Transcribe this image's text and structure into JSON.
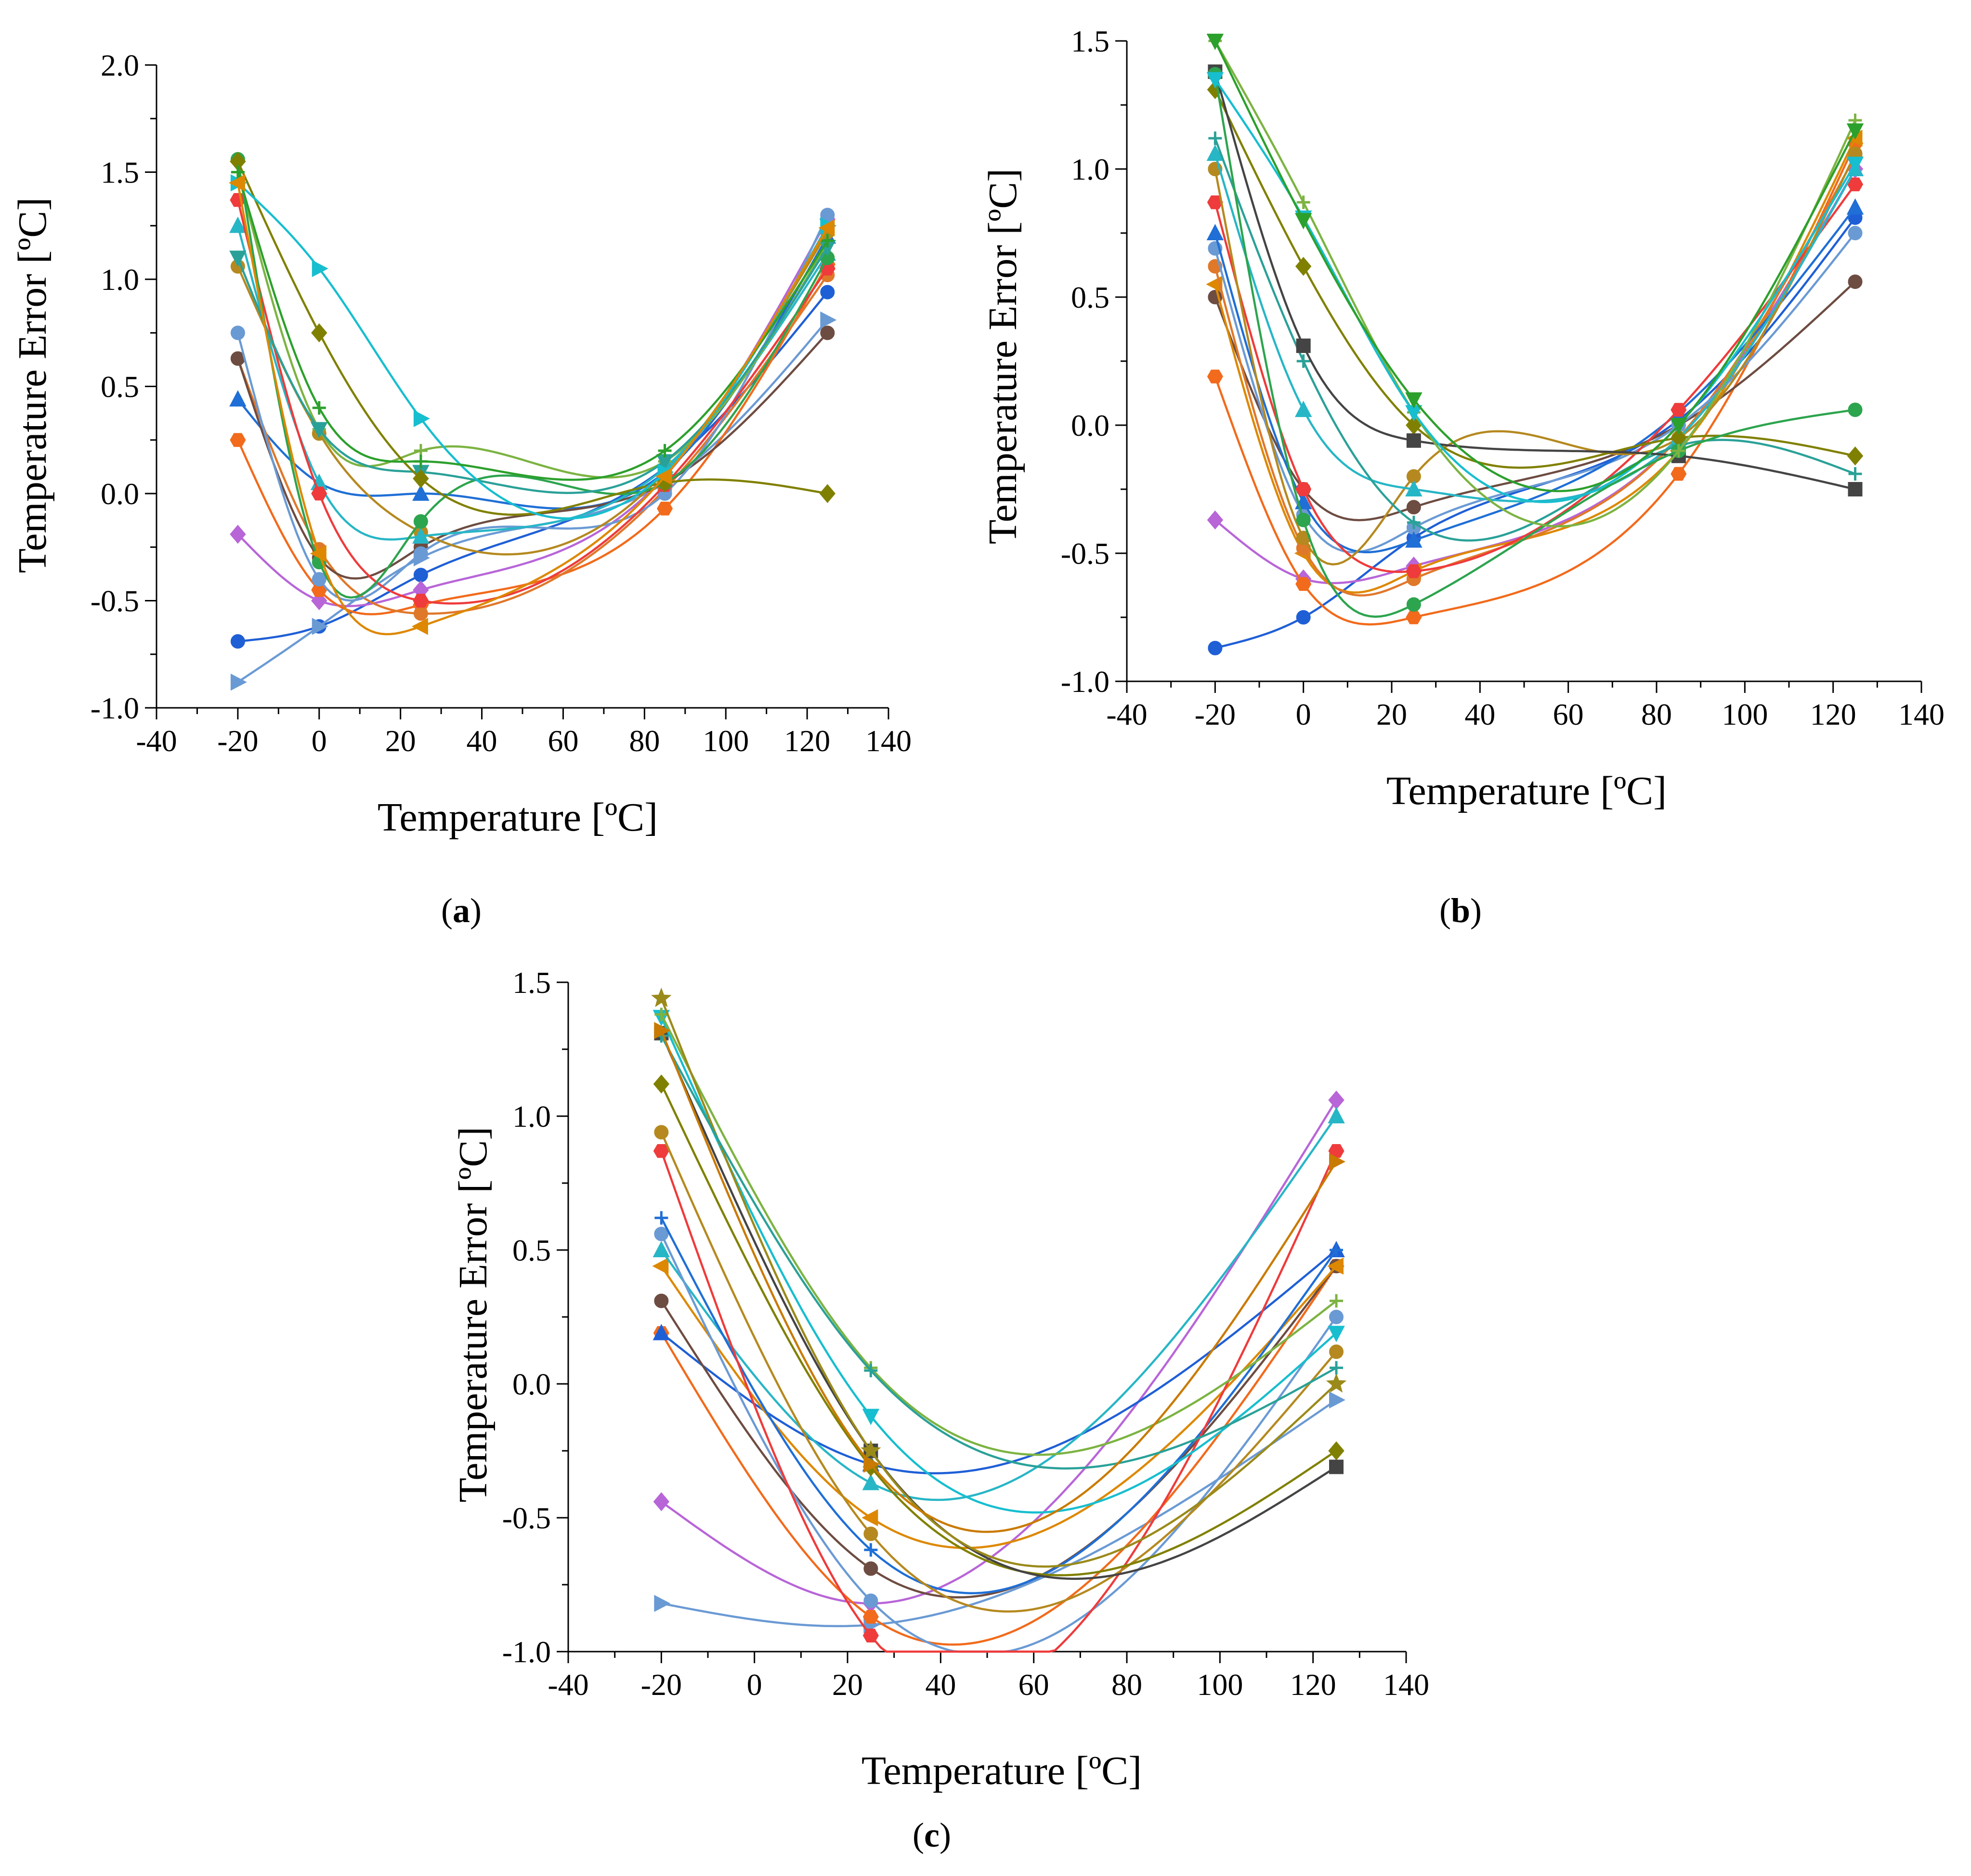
{
  "figure": {
    "panels": [
      "a",
      "b",
      "c"
    ]
  },
  "chart_data": [
    {
      "panel": "a",
      "caption": "(a)",
      "caption_letter": "a",
      "type": "line",
      "xlabel": "Temperature [ºC]",
      "ylabel": "Temperature Error [ºC]",
      "xlim": [
        -40,
        140
      ],
      "ylim": [
        -1.0,
        2.0
      ],
      "xticks": [
        -40,
        -20,
        0,
        20,
        40,
        60,
        80,
        100,
        120,
        140
      ],
      "xtick_labels": [
        "-40",
        "-20",
        "0",
        "20",
        "40",
        "60",
        "80",
        "100",
        "120",
        "140"
      ],
      "yticks": [
        -1.0,
        -0.5,
        0.0,
        0.5,
        1.0,
        1.5,
        2.0
      ],
      "ytick_labels": [
        "-1.0",
        "-0.5",
        "0.0",
        "0.5",
        "1.0",
        "1.5",
        "2.0"
      ],
      "series": [
        {
          "name": "s1",
          "color": "#1f5fd6",
          "marker": "circle",
          "x": [
            -20,
            0,
            25,
            85,
            125
          ],
          "y": [
            -0.69,
            -0.62,
            -0.38,
            0.12,
            0.94
          ]
        },
        {
          "name": "s2",
          "color": "#6a9ad4",
          "marker": "triangle-right",
          "x": [
            -20,
            0,
            25,
            85,
            125
          ],
          "y": [
            -0.88,
            -0.62,
            -0.3,
            0.05,
            0.81
          ]
        },
        {
          "name": "s3",
          "color": "#b865d8",
          "marker": "diamond",
          "x": [
            -20,
            0,
            25,
            85,
            125
          ],
          "y": [
            -0.19,
            -0.5,
            -0.45,
            0.08,
            1.28
          ]
        },
        {
          "name": "s4",
          "color": "#f26a1b",
          "marker": "hexagon",
          "x": [
            -20,
            0,
            25,
            85,
            125
          ],
          "y": [
            0.25,
            -0.45,
            -0.52,
            -0.07,
            1.07
          ]
        },
        {
          "name": "s5",
          "color": "#1f6fd6",
          "marker": "triangle-up",
          "x": [
            -20,
            0,
            25,
            85,
            125
          ],
          "y": [
            0.44,
            0.05,
            0.0,
            0.1,
            1.2
          ]
        },
        {
          "name": "s6",
          "color": "#e0782a",
          "marker": "circle",
          "x": [
            -20,
            0,
            25,
            85,
            125
          ],
          "y": [
            0.63,
            -0.26,
            -0.56,
            0.02,
            1.02
          ]
        },
        {
          "name": "s7",
          "color": "#6d4c41",
          "marker": "circle",
          "x": [
            -20,
            0,
            25,
            85,
            125
          ],
          "y": [
            0.63,
            -0.3,
            -0.25,
            0.05,
            0.75
          ]
        },
        {
          "name": "s8",
          "color": "#6a9ad4",
          "marker": "circle",
          "x": [
            -20,
            0,
            25,
            85,
            125
          ],
          "y": [
            0.75,
            -0.4,
            -0.28,
            0.0,
            1.3
          ]
        },
        {
          "name": "s9",
          "color": "#b5891f",
          "marker": "circle",
          "x": [
            -20,
            0,
            25,
            85,
            125
          ],
          "y": [
            1.06,
            0.28,
            -0.18,
            0.1,
            1.22
          ]
        },
        {
          "name": "s10",
          "color": "#27b6c6",
          "marker": "triangle-up",
          "x": [
            -20,
            0,
            25,
            85,
            125
          ],
          "y": [
            1.25,
            0.05,
            -0.2,
            0.12,
            1.12
          ]
        },
        {
          "name": "s11",
          "color": "#ef3b3b",
          "marker": "hexagon",
          "x": [
            -20,
            0,
            25,
            85,
            125
          ],
          "y": [
            1.37,
            0.0,
            -0.5,
            0.04,
            1.05
          ]
        },
        {
          "name": "s12",
          "color": "#7cb342",
          "marker": "plus",
          "x": [
            -20,
            0,
            25,
            85,
            125
          ],
          "y": [
            1.5,
            0.3,
            0.2,
            0.15,
            1.17
          ]
        },
        {
          "name": "s13",
          "color": "#2da44e",
          "marker": "circle",
          "x": [
            -20,
            0,
            25,
            85,
            125
          ],
          "y": [
            1.56,
            -0.32,
            -0.13,
            0.05,
            1.1
          ]
        },
        {
          "name": "s14",
          "color": "#2aa198",
          "marker": "triangle-down",
          "x": [
            -20,
            0,
            25,
            85,
            125
          ],
          "y": [
            1.1,
            0.3,
            0.1,
            0.15,
            1.15
          ]
        },
        {
          "name": "s15",
          "color": "#808000",
          "marker": "diamond",
          "x": [
            -20,
            0,
            25,
            85,
            125
          ],
          "y": [
            1.55,
            0.75,
            0.07,
            0.05,
            0.0
          ]
        },
        {
          "name": "s16",
          "color": "#17becf",
          "marker": "triangle-right",
          "x": [
            -20,
            0,
            25,
            85,
            125
          ],
          "y": [
            1.45,
            1.05,
            0.35,
            0.1,
            1.25
          ]
        },
        {
          "name": "s17",
          "color": "#2ca02c",
          "marker": "plus",
          "x": [
            -20,
            0,
            25,
            85,
            125
          ],
          "y": [
            1.5,
            0.4,
            0.15,
            0.2,
            1.18
          ]
        },
        {
          "name": "s18",
          "color": "#dd8800",
          "marker": "triangle-left",
          "x": [
            -20,
            0,
            25,
            85,
            125
          ],
          "y": [
            1.45,
            -0.28,
            -0.62,
            0.08,
            1.24
          ]
        }
      ]
    },
    {
      "panel": "b",
      "caption": "(b)",
      "caption_letter": "b",
      "type": "line",
      "xlabel": "Temperature [ºC]",
      "ylabel": "Temperature Error [ºC]",
      "xlim": [
        -40,
        140
      ],
      "ylim": [
        -1.0,
        1.5
      ],
      "xticks": [
        -40,
        -20,
        0,
        20,
        40,
        60,
        80,
        100,
        120,
        140
      ],
      "xtick_labels": [
        "-40",
        "-20",
        "0",
        "20",
        "40",
        "60",
        "80",
        "100",
        "120",
        "140"
      ],
      "yticks": [
        -1.0,
        -0.5,
        0.0,
        0.5,
        1.0,
        1.5
      ],
      "ytick_labels": [
        "-1.0",
        "-0.5",
        "0.0",
        "0.5",
        "1.0",
        "1.5"
      ],
      "series": [
        {
          "name": "s1",
          "color": "#1f5fd6",
          "marker": "circle",
          "x": [
            -20,
            0,
            25,
            85,
            125
          ],
          "y": [
            -0.87,
            -0.75,
            -0.44,
            0.02,
            0.81
          ]
        },
        {
          "name": "s2",
          "color": "#b865d8",
          "marker": "diamond",
          "x": [
            -20,
            0,
            25,
            85,
            125
          ],
          "y": [
            -0.37,
            -0.6,
            -0.55,
            -0.05,
            1.0
          ]
        },
        {
          "name": "s3",
          "color": "#f26a1b",
          "marker": "hexagon",
          "x": [
            -20,
            0,
            25,
            85,
            125
          ],
          "y": [
            0.19,
            -0.62,
            -0.75,
            -0.19,
            1.1
          ]
        },
        {
          "name": "s4",
          "color": "#6d4c41",
          "marker": "circle",
          "x": [
            -20,
            0,
            25,
            85,
            125
          ],
          "y": [
            0.5,
            -0.25,
            -0.32,
            0.0,
            0.56
          ]
        },
        {
          "name": "s5",
          "color": "#dd8800",
          "marker": "triangle-left",
          "x": [
            -20,
            0,
            25,
            85,
            125
          ],
          "y": [
            0.55,
            -0.5,
            -0.57,
            -0.1,
            1.12
          ]
        },
        {
          "name": "s6",
          "color": "#e0782a",
          "marker": "circle",
          "x": [
            -20,
            0,
            25,
            85,
            125
          ],
          "y": [
            0.62,
            -0.48,
            -0.6,
            -0.05,
            1.05
          ]
        },
        {
          "name": "s7",
          "color": "#6a9ad4",
          "marker": "circle",
          "x": [
            -20,
            0,
            25,
            85,
            125
          ],
          "y": [
            0.69,
            -0.35,
            -0.4,
            0.0,
            0.75
          ]
        },
        {
          "name": "s8",
          "color": "#1f6fd6",
          "marker": "triangle-up",
          "x": [
            -20,
            0,
            25,
            85,
            125
          ],
          "y": [
            0.75,
            -0.3,
            -0.45,
            0.05,
            0.85
          ]
        },
        {
          "name": "s9",
          "color": "#ef3b3b",
          "marker": "hexagon",
          "x": [
            -20,
            0,
            25,
            85,
            125
          ],
          "y": [
            0.87,
            -0.25,
            -0.57,
            0.06,
            0.94
          ]
        },
        {
          "name": "s10",
          "color": "#b5891f",
          "marker": "circle",
          "x": [
            -20,
            0,
            25,
            85,
            125
          ],
          "y": [
            1.0,
            -0.44,
            -0.2,
            -0.05,
            1.06
          ]
        },
        {
          "name": "s11",
          "color": "#27b6c6",
          "marker": "triangle-up",
          "x": [
            -20,
            0,
            25,
            85,
            125
          ],
          "y": [
            1.06,
            0.06,
            -0.25,
            -0.05,
            1.0
          ]
        },
        {
          "name": "s12",
          "color": "#2aa198",
          "marker": "plus",
          "x": [
            -20,
            0,
            25,
            85,
            125
          ],
          "y": [
            1.12,
            0.25,
            -0.38,
            -0.08,
            -0.19
          ]
        },
        {
          "name": "s13",
          "color": "#808000",
          "marker": "diamond",
          "x": [
            -20,
            0,
            25,
            85,
            125
          ],
          "y": [
            1.31,
            0.62,
            0.0,
            -0.05,
            -0.12
          ]
        },
        {
          "name": "s14",
          "color": "#444444",
          "marker": "square",
          "x": [
            -20,
            0,
            25,
            85,
            125
          ],
          "y": [
            1.38,
            0.31,
            -0.06,
            -0.12,
            -0.25
          ]
        },
        {
          "name": "s15",
          "color": "#2da44e",
          "marker": "circle",
          "x": [
            -20,
            0,
            25,
            85,
            125
          ],
          "y": [
            1.37,
            -0.37,
            -0.7,
            -0.1,
            0.06
          ]
        },
        {
          "name": "s16",
          "color": "#7cb342",
          "marker": "plus",
          "x": [
            -20,
            0,
            25,
            85,
            125
          ],
          "y": [
            1.5,
            0.87,
            0.05,
            -0.1,
            1.19
          ]
        },
        {
          "name": "s17",
          "color": "#17becf",
          "marker": "triangle-down",
          "x": [
            -20,
            0,
            25,
            85,
            125
          ],
          "y": [
            1.35,
            0.81,
            0.05,
            0.0,
            1.02
          ]
        },
        {
          "name": "s18",
          "color": "#2ca02c",
          "marker": "triangle-down",
          "x": [
            -20,
            0,
            25,
            85,
            125
          ],
          "y": [
            1.5,
            0.8,
            0.1,
            0.0,
            1.15
          ]
        }
      ]
    },
    {
      "panel": "c",
      "caption": "(c)",
      "caption_letter": "c",
      "type": "line",
      "xlabel": "Temperature [ºC]",
      "ylabel": "Temperature Error [ºC]",
      "xlim": [
        -40,
        140
      ],
      "ylim": [
        -1.0,
        1.5
      ],
      "xticks": [
        -40,
        -20,
        0,
        20,
        40,
        60,
        80,
        100,
        120,
        140
      ],
      "xtick_labels": [
        "-40",
        "-20",
        "0",
        "20",
        "40",
        "60",
        "80",
        "100",
        "120",
        "140"
      ],
      "yticks": [
        -1.0,
        -0.5,
        0.0,
        0.5,
        1.0,
        1.5
      ],
      "ytick_labels": [
        "-1.0",
        "-0.5",
        "0.0",
        "0.5",
        "1.0",
        "1.5"
      ],
      "series": [
        {
          "name": "s1",
          "color": "#6a9ad4",
          "marker": "triangle-right",
          "x": [
            -20,
            25,
            125
          ],
          "y": [
            -0.82,
            -0.9,
            -0.06
          ]
        },
        {
          "name": "s2",
          "color": "#b865d8",
          "marker": "diamond",
          "x": [
            -20,
            25,
            125
          ],
          "y": [
            -0.44,
            -0.82,
            1.06
          ]
        },
        {
          "name": "s3",
          "color": "#f26a1b",
          "marker": "hexagon",
          "x": [
            -20,
            25,
            125
          ],
          "y": [
            0.19,
            -0.87,
            0.44
          ]
        },
        {
          "name": "s4",
          "color": "#1f5fd6",
          "marker": "triangle-up",
          "x": [
            -20,
            25,
            125
          ],
          "y": [
            0.19,
            -0.3,
            0.5
          ]
        },
        {
          "name": "s5",
          "color": "#6d4c41",
          "marker": "circle",
          "x": [
            -20,
            25,
            125
          ],
          "y": [
            0.31,
            -0.69,
            0.44
          ]
        },
        {
          "name": "s6",
          "color": "#dd8800",
          "marker": "triangle-left",
          "x": [
            -20,
            25,
            125
          ],
          "y": [
            0.44,
            -0.5,
            0.44
          ]
        },
        {
          "name": "s7",
          "color": "#27b6c6",
          "marker": "triangle-up",
          "x": [
            -20,
            25,
            125
          ],
          "y": [
            0.5,
            -0.37,
            1.0
          ]
        },
        {
          "name": "s8",
          "color": "#6a9ad4",
          "marker": "circle",
          "x": [
            -20,
            25,
            125
          ],
          "y": [
            0.56,
            -0.81,
            0.25
          ]
        },
        {
          "name": "s9",
          "color": "#1f6fd6",
          "marker": "plus",
          "x": [
            -20,
            25,
            125
          ],
          "y": [
            0.62,
            -0.62,
            0.5
          ]
        },
        {
          "name": "s10",
          "color": "#ef3b3b",
          "marker": "hexagon",
          "x": [
            -20,
            25,
            125
          ],
          "y": [
            0.87,
            -0.94,
            0.87
          ]
        },
        {
          "name": "s11",
          "color": "#b5891f",
          "marker": "circle",
          "x": [
            -20,
            25,
            125
          ],
          "y": [
            0.94,
            -0.56,
            0.12
          ]
        },
        {
          "name": "s12",
          "color": "#808000",
          "marker": "diamond",
          "x": [
            -20,
            25,
            125
          ],
          "y": [
            1.12,
            -0.31,
            -0.25
          ]
        },
        {
          "name": "s13",
          "color": "#444444",
          "marker": "square",
          "x": [
            -20,
            25,
            125
          ],
          "y": [
            1.31,
            -0.25,
            -0.31
          ]
        },
        {
          "name": "s14",
          "color": "#17becf",
          "marker": "triangle-down",
          "x": [
            -20,
            25,
            125
          ],
          "y": [
            1.37,
            -0.12,
            0.19
          ]
        },
        {
          "name": "s15",
          "color": "#7cb342",
          "marker": "plus",
          "x": [
            -20,
            25,
            125
          ],
          "y": [
            1.38,
            0.06,
            0.31
          ]
        },
        {
          "name": "s16",
          "color": "#9a8a1a",
          "marker": "star",
          "x": [
            -20,
            25,
            125
          ],
          "y": [
            1.44,
            -0.25,
            0.0
          ]
        },
        {
          "name": "s17",
          "color": "#2aa198",
          "marker": "plus",
          "x": [
            -20,
            25,
            125
          ],
          "y": [
            1.3,
            0.05,
            0.06
          ]
        },
        {
          "name": "s18",
          "color": "#c97a00",
          "marker": "triangle-right",
          "x": [
            -20,
            25,
            125
          ],
          "y": [
            1.32,
            -0.3,
            0.83
          ]
        }
      ]
    }
  ]
}
